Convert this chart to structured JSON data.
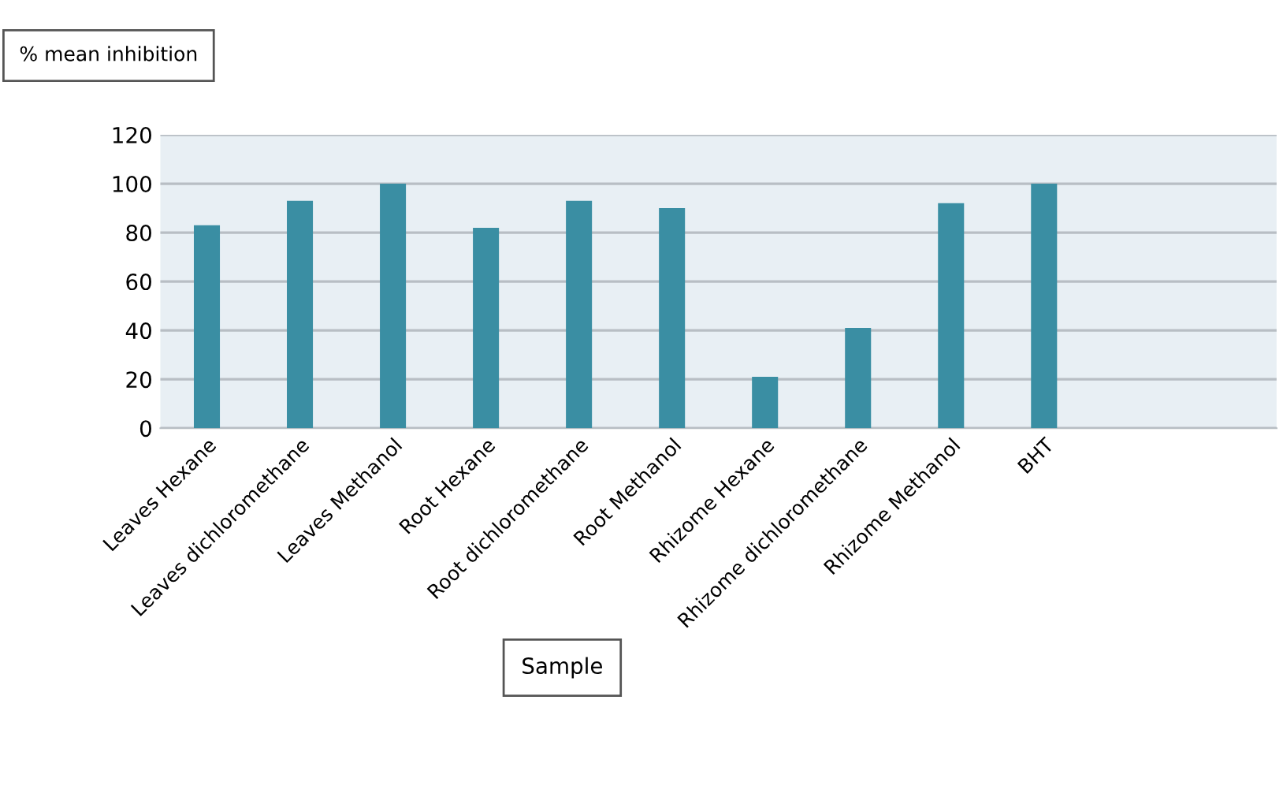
{
  "chart_data": {
    "type": "bar",
    "ylabel": "% mean inhibition",
    "xlabel": "Sample",
    "categories": [
      "Leaves Hexane",
      "Leaves dichloromethane",
      "Leaves Methanol",
      "Root Hexane",
      "Root dichloromethane",
      "Root Methanol",
      "Rhizome Hexane",
      "Rhizome dichloromethane",
      "Rhizome Methanol",
      "BHT",
      null,
      null
    ],
    "values": [
      83,
      93,
      100,
      82,
      93,
      90,
      21,
      41,
      92,
      100,
      null,
      null
    ],
    "color": "#3a8ea3",
    "ylim": [
      0,
      120
    ],
    "yticks": [
      0,
      20,
      40,
      60,
      80,
      100,
      120
    ],
    "grid": "y",
    "legend": false
  }
}
